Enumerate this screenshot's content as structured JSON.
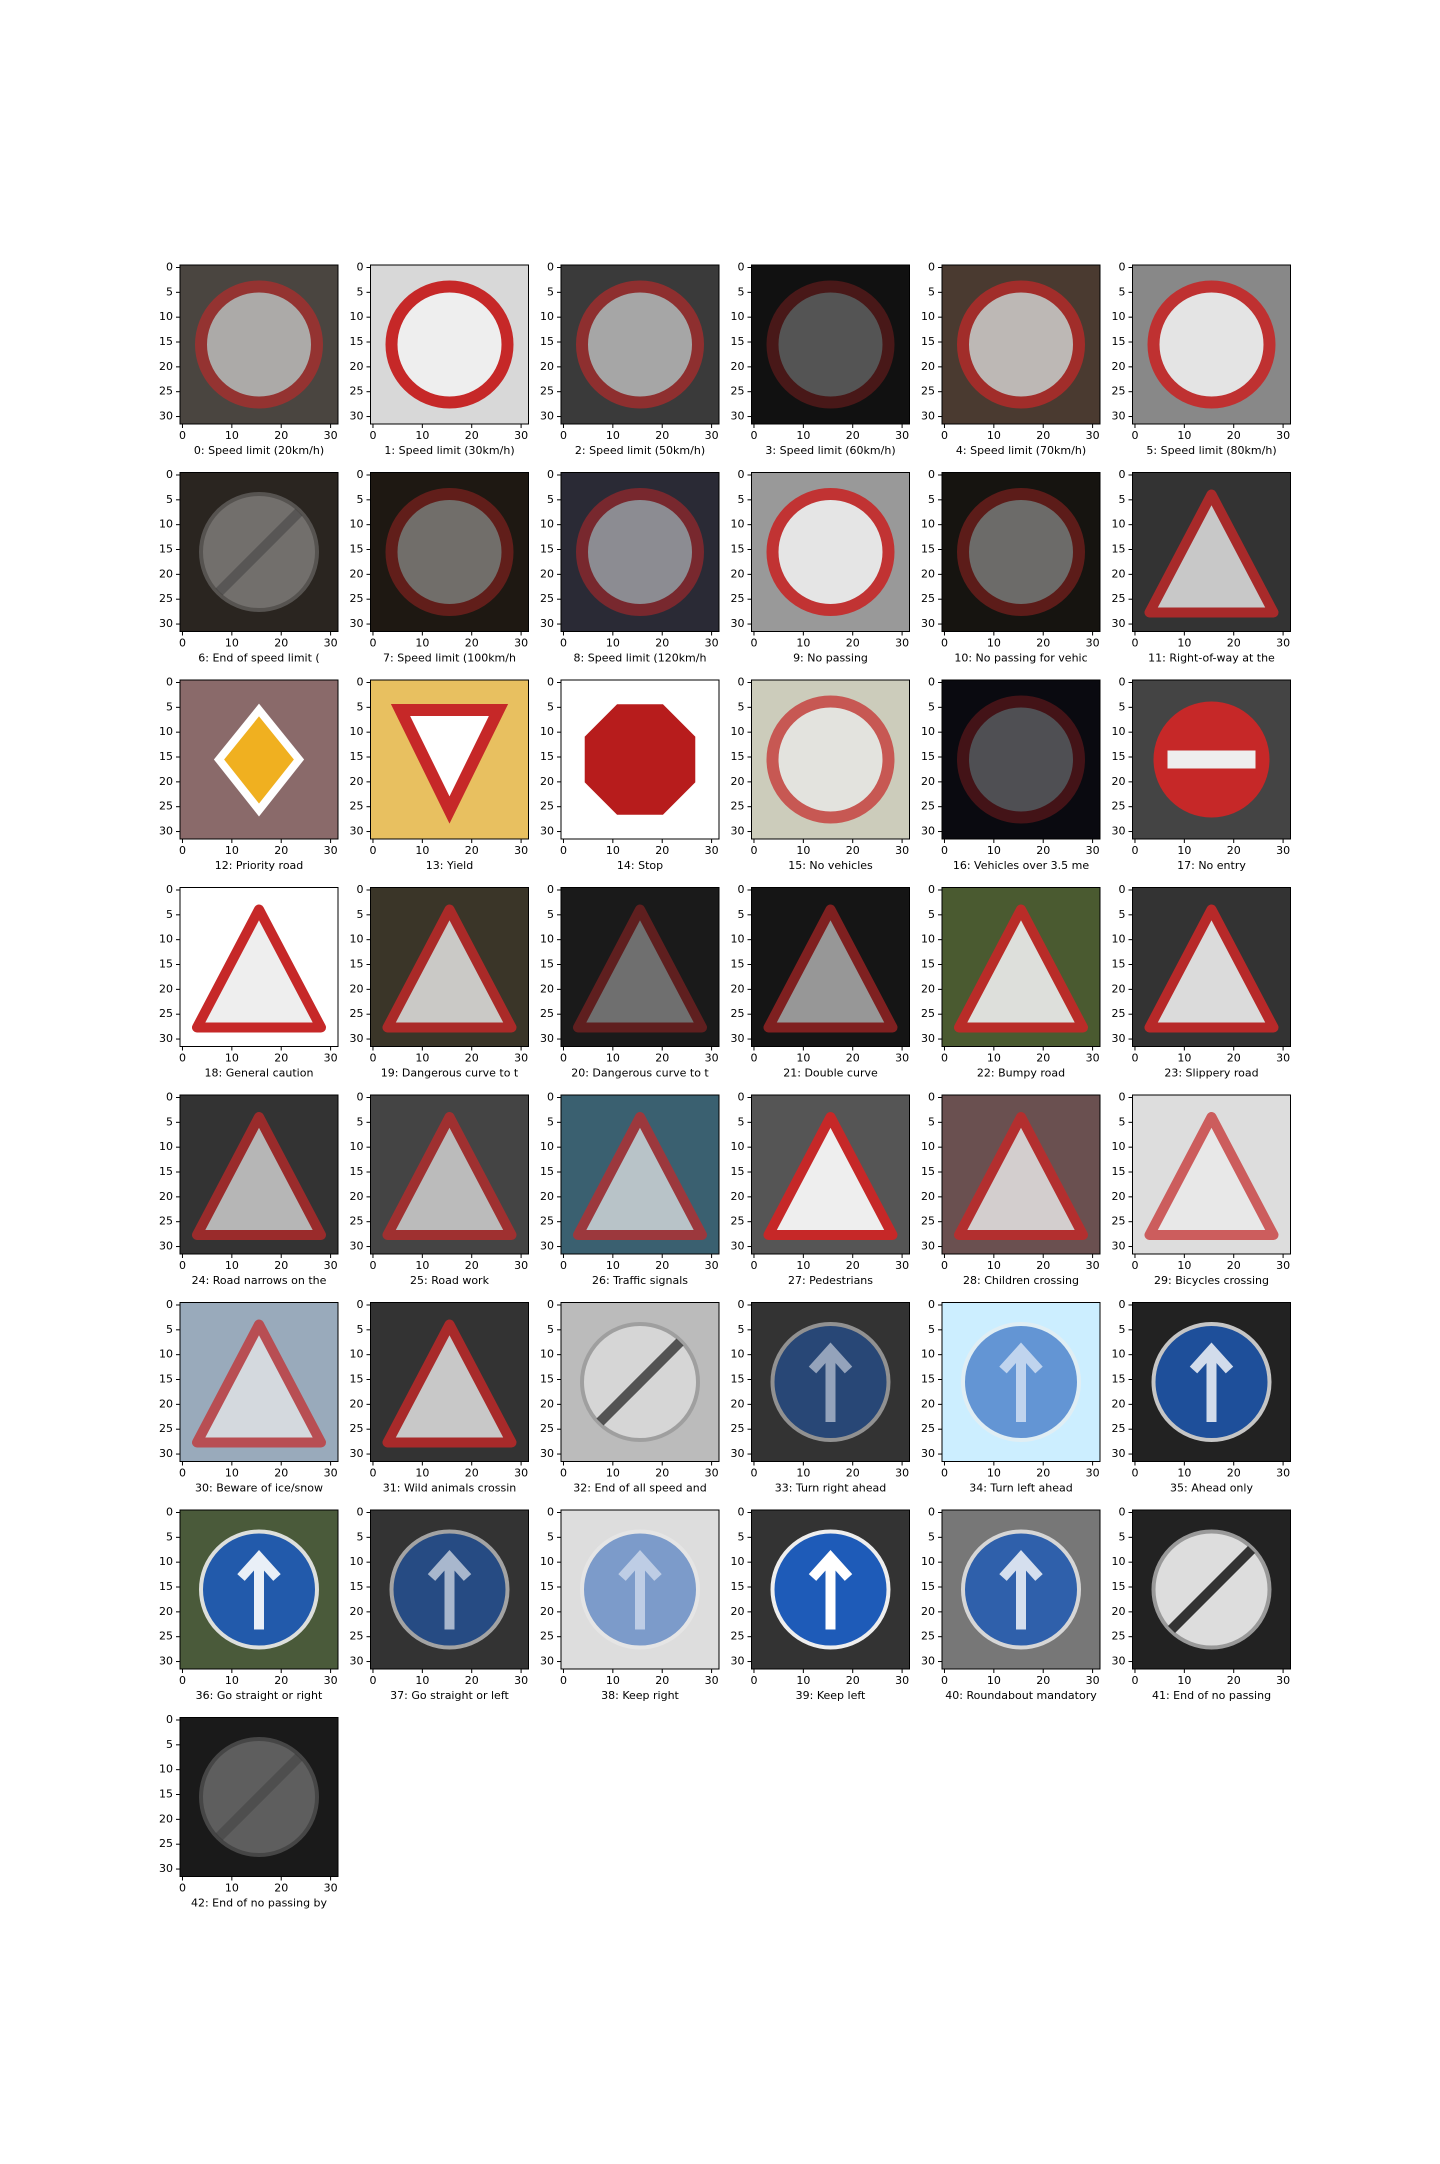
{
  "axes": {
    "xlim": [
      -0.5,
      31.5
    ],
    "ylim": [
      31.5,
      -0.5
    ],
    "xticks": [
      0,
      10,
      20,
      30
    ],
    "yticks": [
      0,
      5,
      10,
      15,
      20,
      25,
      30
    ]
  },
  "panels": [
    "0: Speed limit (20km/h)",
    "1: Speed limit (30km/h)",
    "2: Speed limit (50km/h)",
    "3: Speed limit (60km/h)",
    "4: Speed limit (70km/h)",
    "5: Speed limit (80km/h)",
    "6: End of speed limit (",
    "7: Speed limit (100km/h",
    "8: Speed limit (120km/h",
    "9: No passing",
    "10: No passing for vehic",
    "11: Right-of-way at the",
    "12: Priority road",
    "13: Yield",
    "14: Stop",
    "15: No vehicles",
    "16: Vehicles over 3.5 me",
    "17: No entry",
    "18: General caution",
    "19: Dangerous curve to t",
    "20: Dangerous curve to t",
    "21: Double curve",
    "22: Bumpy road",
    "23: Slippery road",
    "24: Road narrows on the",
    "25: Road work",
    "26: Traffic signals",
    "27: Pedestrians",
    "28: Children crossing",
    "29: Bicycles crossing",
    "30: Beware of ice/snow",
    "31: Wild animals crossin",
    "32: End of all speed and",
    "33: Turn right ahead",
    "34: Turn left ahead",
    "35: Ahead only",
    "36: Go straight or right",
    "37: Go straight or left",
    "38: Keep right",
    "39: Keep left",
    "40: Roundabout mandatory",
    "41: End of no passing",
    "42: End of no passing by"
  ]
}
